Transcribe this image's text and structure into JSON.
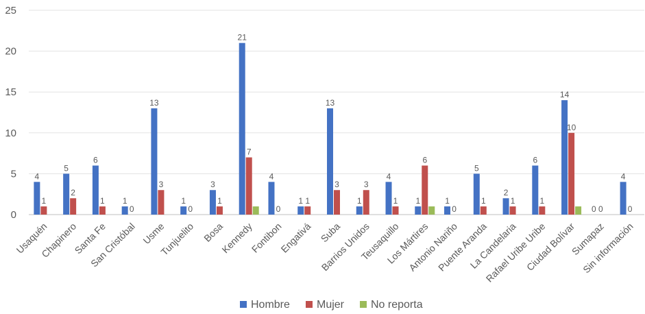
{
  "chart_data": {
    "type": "bar",
    "title": "",
    "xlabel": "",
    "ylabel": "",
    "ylim": [
      0,
      25
    ],
    "yticks": [
      0,
      5,
      10,
      15,
      20,
      25
    ],
    "grid": true,
    "legend_position": "bottom",
    "categories": [
      "Usaquén",
      "Chapinero",
      "Santa Fe",
      "San Cristóbal",
      "Usme",
      "Tunjuelito",
      "Bosa",
      "Kennedy",
      "Fontibon",
      "Engativá",
      "Suba",
      "Barrios Unidos",
      "Teusaquillo",
      "Los Mártires",
      "Antonio Nariño",
      "Puente Aranda",
      "La Candelaria",
      "Rafael Uribe Uribe",
      "Ciudad Bolívar",
      "Sumapaz",
      "Sin información"
    ],
    "series": [
      {
        "name": "Hombre",
        "color": "#4472C4",
        "values": [
          4,
          5,
          6,
          1,
          13,
          1,
          3,
          21,
          4,
          1,
          13,
          1,
          4,
          1,
          1,
          5,
          2,
          6,
          14,
          0,
          4
        ],
        "labels": [
          "4",
          "5",
          "6",
          "1",
          "13",
          "1",
          "3",
          "21",
          "4",
          "1",
          "13",
          "1",
          "4",
          "1",
          "1",
          "5",
          "2",
          "6",
          "14",
          "0",
          "4"
        ]
      },
      {
        "name": "Mujer",
        "color": "#C0504D",
        "values": [
          1,
          2,
          1,
          0,
          3,
          0,
          1,
          7,
          0,
          1,
          3,
          3,
          1,
          6,
          0,
          1,
          1,
          1,
          10,
          0,
          0
        ],
        "labels": [
          "1",
          "2",
          "1",
          "0",
          "3",
          "0",
          "1",
          "7",
          "0",
          "1",
          "3",
          "3",
          "1",
          "6",
          "0",
          "1",
          "1",
          "1",
          "10",
          "0",
          "0"
        ]
      },
      {
        "name": "No reporta",
        "color": "#9BBB59",
        "values": [
          0,
          0,
          0,
          0,
          0,
          0,
          0,
          1,
          0,
          0,
          0,
          0,
          0,
          1,
          0,
          0,
          0,
          0,
          1,
          0,
          0
        ],
        "labels": [
          "",
          "",
          "",
          "",
          "",
          "",
          "",
          "",
          "",
          "",
          "",
          "",
          "",
          "",
          "",
          "",
          "",
          "",
          "",
          "",
          ""
        ]
      }
    ]
  }
}
